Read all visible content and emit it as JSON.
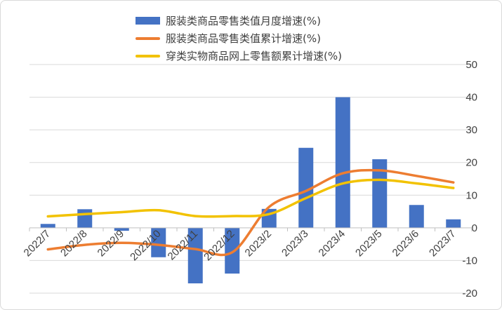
{
  "chart_data": {
    "type": "bar",
    "categories": [
      "2022/7",
      "2022/8",
      "2022/9",
      "2022/10",
      "2022/11",
      "2022/12",
      "2023/2",
      "2023/3",
      "2023/4",
      "2023/5",
      "2023/6",
      "2023/7"
    ],
    "series": [
      {
        "name": "服装类商品零售类值月度增速(%)",
        "type": "bar",
        "color": "#4472C4",
        "values": [
          1.2,
          5.7,
          -0.9,
          -9.0,
          -17.0,
          -14.0,
          5.8,
          24.5,
          40.0,
          21.0,
          7.0,
          2.6
        ]
      },
      {
        "name": "服装类商品零售类值累计增速(%)",
        "type": "line",
        "color": "#ED7D31",
        "values": [
          -6.6,
          -5.2,
          -4.6,
          -5.2,
          -6.5,
          -7.5,
          6.4,
          11.3,
          16.7,
          17.6,
          15.9,
          13.9
        ]
      },
      {
        "name": "穿类实物商品网上零售额累计增速(%)",
        "type": "line",
        "color": "#F2C200",
        "values": [
          3.5,
          4.2,
          4.8,
          5.4,
          3.6,
          3.6,
          4.2,
          9.1,
          13.6,
          14.7,
          13.6,
          12.2
        ]
      }
    ],
    "ylim": [
      -20,
      50
    ],
    "yticks": [
      -20,
      -10,
      0,
      10,
      20,
      30,
      40,
      50
    ],
    "grid": true,
    "legend": "top-center"
  }
}
